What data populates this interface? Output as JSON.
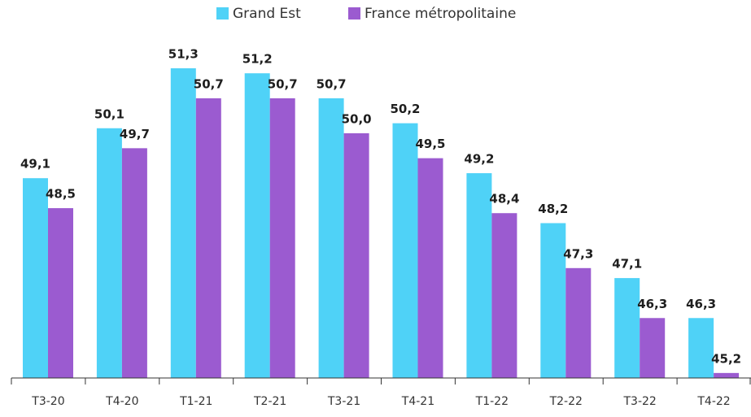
{
  "chart_data": {
    "type": "bar",
    "categories": [
      "T3-20",
      "T4-20",
      "T1-21",
      "T2-21",
      "T3-21",
      "T4-21",
      "T1-22",
      "T2-22",
      "T3-22",
      "T4-22"
    ],
    "series": [
      {
        "name": "Grand Est",
        "color": "#4fd2f7",
        "values": [
          49.1,
          50.1,
          51.3,
          51.2,
          50.7,
          50.2,
          49.2,
          48.2,
          47.1,
          46.3
        ],
        "value_labels": [
          "49,1",
          "50,1",
          "51,3",
          "51,2",
          "50,7",
          "50,2",
          "49,2",
          "48,2",
          "47,1",
          "46,3"
        ]
      },
      {
        "name": "France métropolitaine",
        "color": "#9b5bd0",
        "values": [
          48.5,
          49.7,
          50.7,
          50.7,
          50.0,
          49.5,
          48.4,
          47.3,
          46.3,
          45.2
        ],
        "value_labels": [
          "48,5",
          "49,7",
          "50,7",
          "50,7",
          "50,0",
          "49,5",
          "48,4",
          "47,3",
          "46,3",
          "45,2"
        ]
      }
    ],
    "ylim": [
      45.1,
      52.0
    ],
    "legend": "top"
  }
}
